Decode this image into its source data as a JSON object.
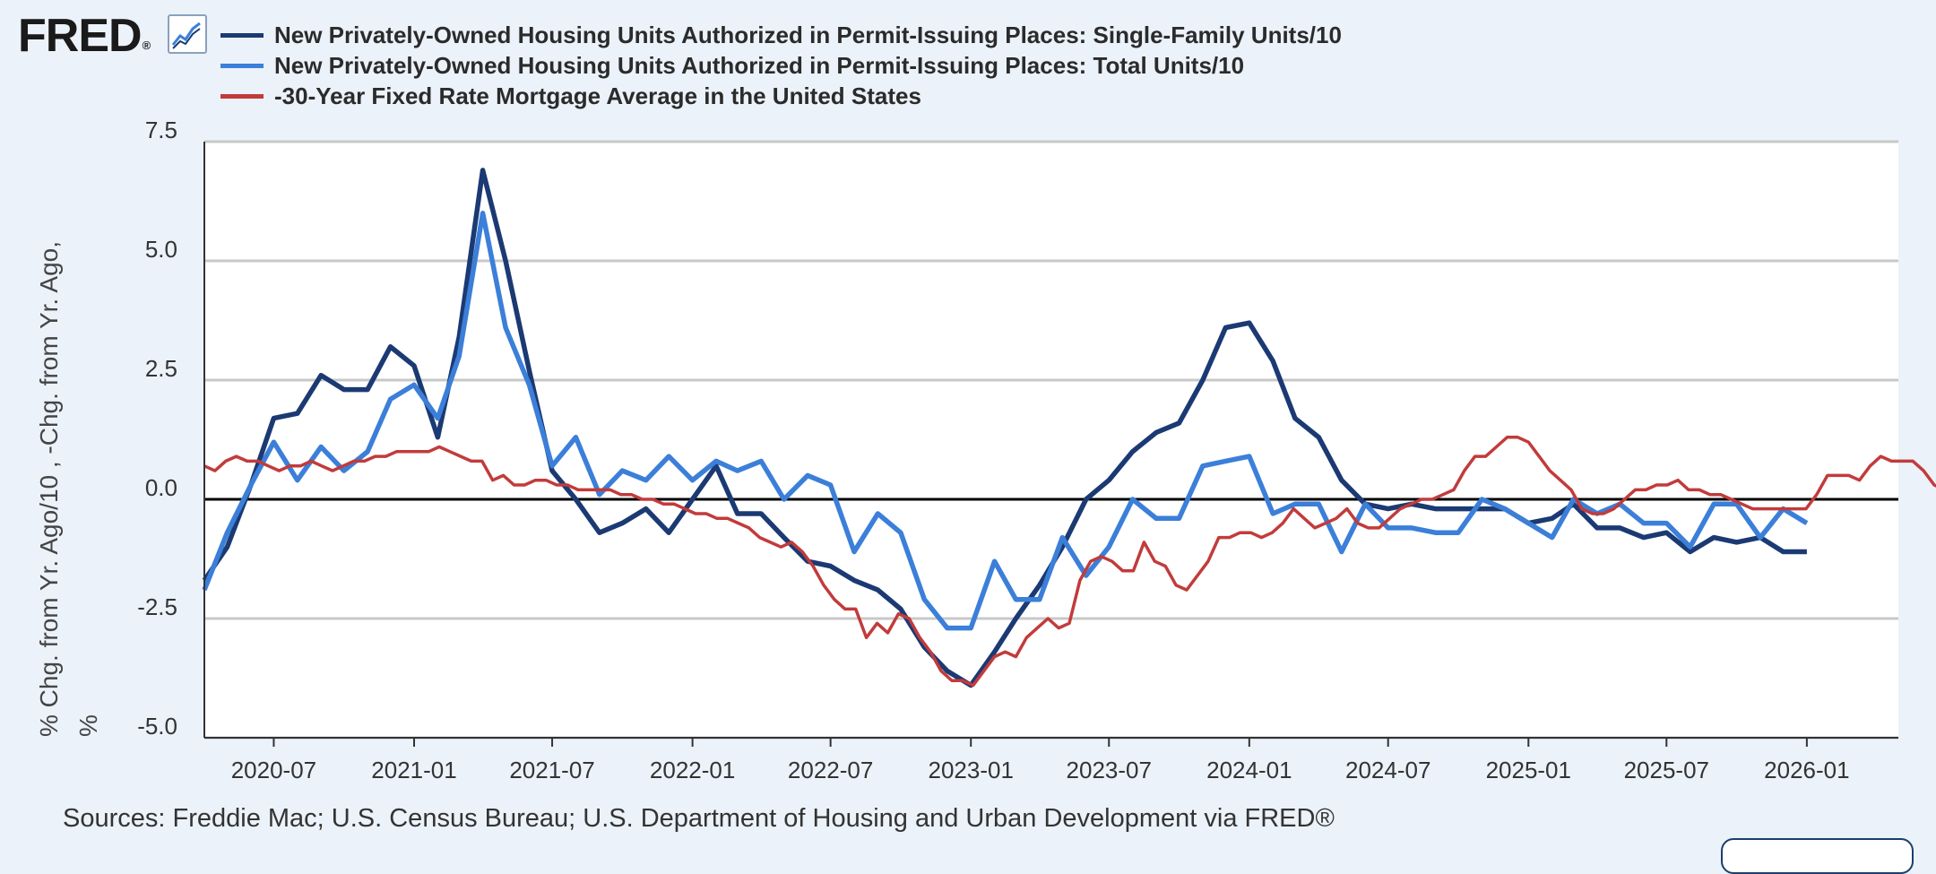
{
  "header": {
    "logo_text": "FRED",
    "logo_reg": "®",
    "logo_icon": "chart-line-icon"
  },
  "legend": [
    {
      "label": "New Privately-Owned Housing Units Authorized in Permit-Issuing Places: Single-Family Units/10",
      "color": "#1b3a73"
    },
    {
      "label": "New Privately-Owned Housing Units Authorized in Permit-Issuing Places: Total Units/10",
      "color": "#3b7fd9"
    },
    {
      "label": "-30-Year Fixed Rate Mortgage Average in the United States",
      "color": "#c23b3b"
    }
  ],
  "sources": "Sources: Freddie Mac; U.S. Census Bureau; U.S. Department of Housing and Urban Development via FRED®",
  "chart_data": {
    "type": "line",
    "ylabel_line1": "% Chg. from Yr. Ago/10 , -Chg. from Yr. Ago,",
    "ylabel_line2": "%",
    "ylim": [
      -5.0,
      7.5
    ],
    "yticks": [
      "7.5",
      "5.0",
      "2.5",
      "0.0",
      "-2.5",
      "-5.0"
    ],
    "ytick_values": [
      7.5,
      5.0,
      2.5,
      0.0,
      -2.5,
      -5.0
    ],
    "xlim": [
      "2020-04-01",
      "2026-05-01"
    ],
    "xticks": [
      "2020-07",
      "2021-01",
      "2021-07",
      "2022-01",
      "2022-07",
      "2023-01",
      "2023-07",
      "2024-01",
      "2024-07",
      "2025-01",
      "2025-07",
      "2026-01"
    ],
    "grid": true,
    "zero_line": true,
    "legend_position": "top",
    "series": [
      {
        "name": "New Privately-Owned Housing Units Authorized in Permit-Issuing Places: Single-Family Units/10",
        "color": "#1b3a73",
        "start": "2020-04",
        "frequency": "monthly",
        "values": [
          -1.7,
          -1.0,
          0.3,
          1.7,
          1.8,
          2.6,
          2.3,
          2.3,
          3.2,
          2.8,
          1.3,
          3.4,
          6.9,
          5.0,
          2.7,
          0.6,
          0.0,
          -0.7,
          -0.5,
          -0.2,
          -0.7,
          0.0,
          0.7,
          -0.3,
          -0.3,
          -0.8,
          -1.3,
          -1.4,
          -1.7,
          -1.9,
          -2.3,
          -3.1,
          -3.6,
          -3.9,
          -3.2,
          -2.5,
          -1.8,
          -1.0,
          0.0,
          0.4,
          1.0,
          1.4,
          1.6,
          2.5,
          3.6,
          3.7,
          2.9,
          1.7,
          1.3,
          0.4,
          -0.1,
          -0.2,
          -0.1,
          -0.2,
          -0.2,
          -0.2,
          -0.2,
          -0.5,
          -0.4,
          -0.1,
          -0.6,
          -0.6,
          -0.8,
          -0.7,
          -1.1,
          -0.8,
          -0.9,
          -0.8,
          -1.1,
          -1.1
        ]
      },
      {
        "name": "New Privately-Owned Housing Units Authorized in Permit-Issuing Places: Total Units/10",
        "color": "#3b7fd9",
        "start": "2020-04",
        "frequency": "monthly",
        "values": [
          -1.9,
          -0.7,
          0.3,
          1.2,
          0.4,
          1.1,
          0.6,
          1.0,
          2.1,
          2.4,
          1.7,
          3.0,
          6.0,
          3.6,
          2.4,
          0.7,
          1.3,
          0.1,
          0.6,
          0.4,
          0.9,
          0.4,
          0.8,
          0.6,
          0.8,
          0.0,
          0.5,
          0.3,
          -1.1,
          -0.3,
          -0.7,
          -2.1,
          -2.7,
          -2.7,
          -1.3,
          -2.1,
          -2.1,
          -0.8,
          -1.6,
          -1.0,
          0.0,
          -0.4,
          -0.4,
          0.7,
          0.8,
          0.9,
          -0.3,
          -0.1,
          -0.1,
          -1.1,
          -0.1,
          -0.6,
          -0.6,
          -0.7,
          -0.7,
          0.0,
          -0.2,
          -0.5,
          -0.8,
          0.0,
          -0.3,
          -0.1,
          -0.5,
          -0.5,
          -1.0,
          -0.1,
          -0.1,
          -0.8,
          -0.2,
          -0.5
        ]
      },
      {
        "name": "-30-Year Fixed Rate Mortgage Average in the United States",
        "color": "#c23b3b",
        "start": "2020-04-01",
        "frequency": "biweekly",
        "values": [
          0.7,
          0.6,
          0.8,
          0.9,
          0.8,
          0.8,
          0.7,
          0.6,
          0.7,
          0.7,
          0.8,
          0.7,
          0.6,
          0.7,
          0.8,
          0.8,
          0.9,
          0.9,
          1.0,
          1.0,
          1.0,
          1.0,
          1.1,
          1.0,
          0.9,
          0.8,
          0.8,
          0.4,
          0.5,
          0.3,
          0.3,
          0.4,
          0.4,
          0.3,
          0.3,
          0.2,
          0.2,
          0.2,
          0.2,
          0.1,
          0.1,
          0.0,
          0.0,
          -0.1,
          -0.1,
          -0.2,
          -0.3,
          -0.3,
          -0.4,
          -0.4,
          -0.5,
          -0.6,
          -0.8,
          -0.9,
          -1.0,
          -0.9,
          -1.1,
          -1.4,
          -1.8,
          -2.1,
          -2.3,
          -2.3,
          -2.9,
          -2.6,
          -2.8,
          -2.4,
          -2.5,
          -2.9,
          -3.2,
          -3.6,
          -3.8,
          -3.8,
          -3.9,
          -3.6,
          -3.3,
          -3.2,
          -3.3,
          -2.9,
          -2.7,
          -2.5,
          -2.7,
          -2.6,
          -1.7,
          -1.3,
          -1.2,
          -1.3,
          -1.5,
          -1.5,
          -0.9,
          -1.3,
          -1.4,
          -1.8,
          -1.9,
          -1.6,
          -1.3,
          -0.8,
          -0.8,
          -0.7,
          -0.7,
          -0.8,
          -0.7,
          -0.5,
          -0.2,
          -0.4,
          -0.6,
          -0.5,
          -0.4,
          -0.2,
          -0.5,
          -0.6,
          -0.6,
          -0.4,
          -0.2,
          -0.1,
          0.0,
          0.0,
          0.1,
          0.2,
          0.6,
          0.9,
          0.9,
          1.1,
          1.3,
          1.3,
          1.2,
          0.9,
          0.6,
          0.4,
          0.2,
          -0.2,
          -0.3,
          -0.3,
          -0.2,
          0.0,
          0.2,
          0.2,
          0.3,
          0.3,
          0.4,
          0.2,
          0.2,
          0.1,
          0.1,
          0.0,
          -0.1,
          -0.2,
          -0.2,
          -0.2,
          -0.2,
          -0.2,
          -0.2,
          0.1,
          0.5,
          0.5,
          0.5,
          0.4,
          0.7,
          0.9,
          0.8,
          0.8,
          0.8,
          0.6,
          0.3,
          0.2
        ]
      }
    ]
  }
}
